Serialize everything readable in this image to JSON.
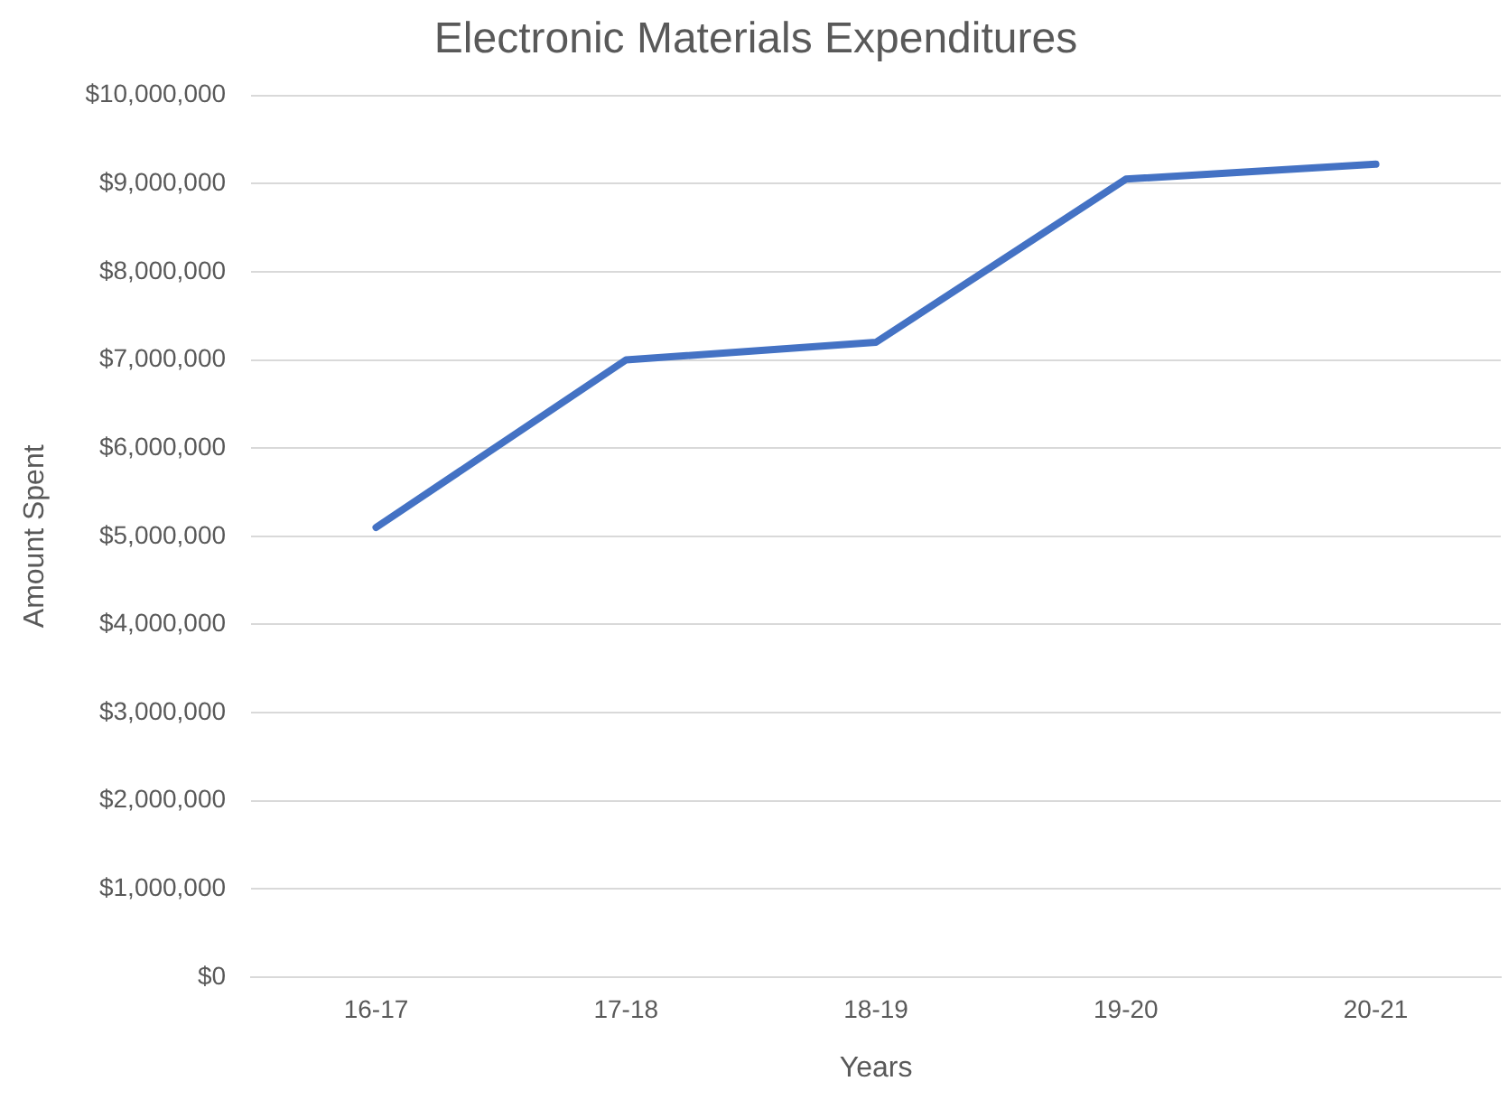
{
  "chart_data": {
    "type": "line",
    "title": "Electronic Materials Expenditures",
    "xlabel": "Years",
    "ylabel": "Amount Spent",
    "categories": [
      "16-17",
      "17-18",
      "18-19",
      "19-20",
      "20-21"
    ],
    "series": [
      {
        "color": "#4472c4",
        "values": [
          5100000,
          7000000,
          7200000,
          9050000,
          9220000
        ]
      }
    ],
    "ylim": [
      0,
      10000000
    ],
    "yticks": [
      {
        "value": 0,
        "label": "$0"
      },
      {
        "value": 1000000,
        "label": "$1,000,000"
      },
      {
        "value": 2000000,
        "label": "$2,000,000"
      },
      {
        "value": 3000000,
        "label": "$3,000,000"
      },
      {
        "value": 4000000,
        "label": "$4,000,000"
      },
      {
        "value": 5000000,
        "label": "$5,000,000"
      },
      {
        "value": 6000000,
        "label": "$6,000,000"
      },
      {
        "value": 7000000,
        "label": "$7,000,000"
      },
      {
        "value": 8000000,
        "label": "$8,000,000"
      },
      {
        "value": 9000000,
        "label": "$9,000,000"
      },
      {
        "value": 10000000,
        "label": "$10,000,000"
      }
    ],
    "grid": "y",
    "legend": false,
    "marker": "none",
    "line_style": "solid"
  }
}
